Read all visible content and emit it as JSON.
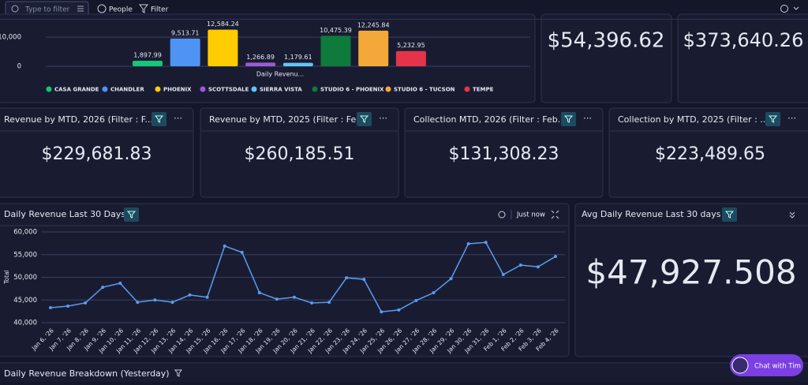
{
  "toolbar": {
    "search_placeholder": "Type to filter",
    "people": "People",
    "filter": "Filter"
  },
  "kpis": [
    {
      "value": "$54,396.62"
    },
    {
      "value": "$373,640.26"
    },
    {
      "title": "Revenue by MTD, 2026 (Filter : F...",
      "value": "$229,681.83"
    },
    {
      "title": "Revenue by MTD, 2025 (Filter : Fe...",
      "value": "$260,185.51"
    },
    {
      "title": "Collection MTD, 2026 (Filter : Feb...",
      "value": "$131,308.23"
    },
    {
      "title": "Collection by MTD, 2025 (Filter : ...",
      "value": "$223,489.65"
    },
    {
      "title": "Avg Daily Revenue Last 30 days",
      "value": "$47,927.508"
    }
  ],
  "chart_data": [
    {
      "type": "bar",
      "x_label": "Daily Revenu...",
      "categories": [
        "CASA GRANDE",
        "CHANDLER",
        "PHOENIX",
        "SCOTTSDALE",
        "SIERRA VISTA",
        "STUDIO 6 - PHOENIX",
        "STUDIO 6 - TUCSON",
        "TEMPE"
      ],
      "values": [
        1897.99,
        9513.71,
        12584.24,
        1266.89,
        1179.61,
        10475.39,
        12245.84,
        5232.95
      ],
      "value_labels": [
        "1,897.99",
        "9,513.71",
        "12,584.24",
        "1,266.89",
        "1,179.61",
        "10,475.39",
        "12,245.84",
        "5,232.95"
      ],
      "colors": [
        "#16c47a",
        "#4f93f5",
        "#ffcc00",
        "#9b59d9",
        "#5dc8f5",
        "#0e7a3c",
        "#f5a83a",
        "#e5344a"
      ],
      "ylim": [
        0,
        16000
      ],
      "yticks": [
        0,
        {
          "value": 10000,
          "label": "10,000"
        }
      ],
      "grid": true
    },
    {
      "type": "line",
      "title": "Daily Revenue Last 30 Days",
      "status": "Just now",
      "y_label": "Total",
      "color": "#5b9bf0",
      "categories": [
        "Jan 6, '26",
        "Jan 7, '26",
        "Jan 8, '26",
        "Jan 9, '26",
        "Jan 10, '26",
        "Jan 11, '26",
        "Jan 12, '26",
        "Jan 13, '26",
        "Jan 14, '26",
        "Jan 15, '26",
        "Jan 16, '26",
        "Jan 17, '26",
        "Jan 18, '26",
        "Jan 19, '26",
        "Jan 20, '26",
        "Jan 21, '26",
        "Jan 22, '26",
        "Jan 23, '26",
        "Jan 24, '26",
        "Jan 25, '26",
        "Jan 26, '26",
        "Jan 27, '26",
        "Jan 28, '26",
        "Jan 29, '26",
        "Jan 30, '26",
        "Jan 31, '26",
        "Feb 1, '26",
        "Feb 2, '26",
        "Feb 3, '26",
        "Feb 4, '26"
      ],
      "values": [
        43300,
        43650,
        44350,
        47800,
        48700,
        44500,
        45000,
        44500,
        46100,
        45600,
        56900,
        55500,
        46600,
        45200,
        45600,
        44350,
        44500,
        49900,
        49550,
        42400,
        42800,
        44900,
        46600,
        49700,
        57400,
        57700,
        50600,
        52700,
        52300,
        54600
      ],
      "ylim": [
        40000,
        60000
      ],
      "yticks": [
        {
          "value": 40000,
          "label": "40,000"
        },
        {
          "value": 45000,
          "label": "45,000"
        },
        {
          "value": 50000,
          "label": "50,000"
        },
        {
          "value": 55000,
          "label": "55,000"
        },
        {
          "value": 60000,
          "label": "60,000"
        }
      ],
      "grid": true
    }
  ],
  "breakdown_title": "Daily Revenue Breakdown (Yesterday)",
  "chat_button": "Chat with Tim"
}
